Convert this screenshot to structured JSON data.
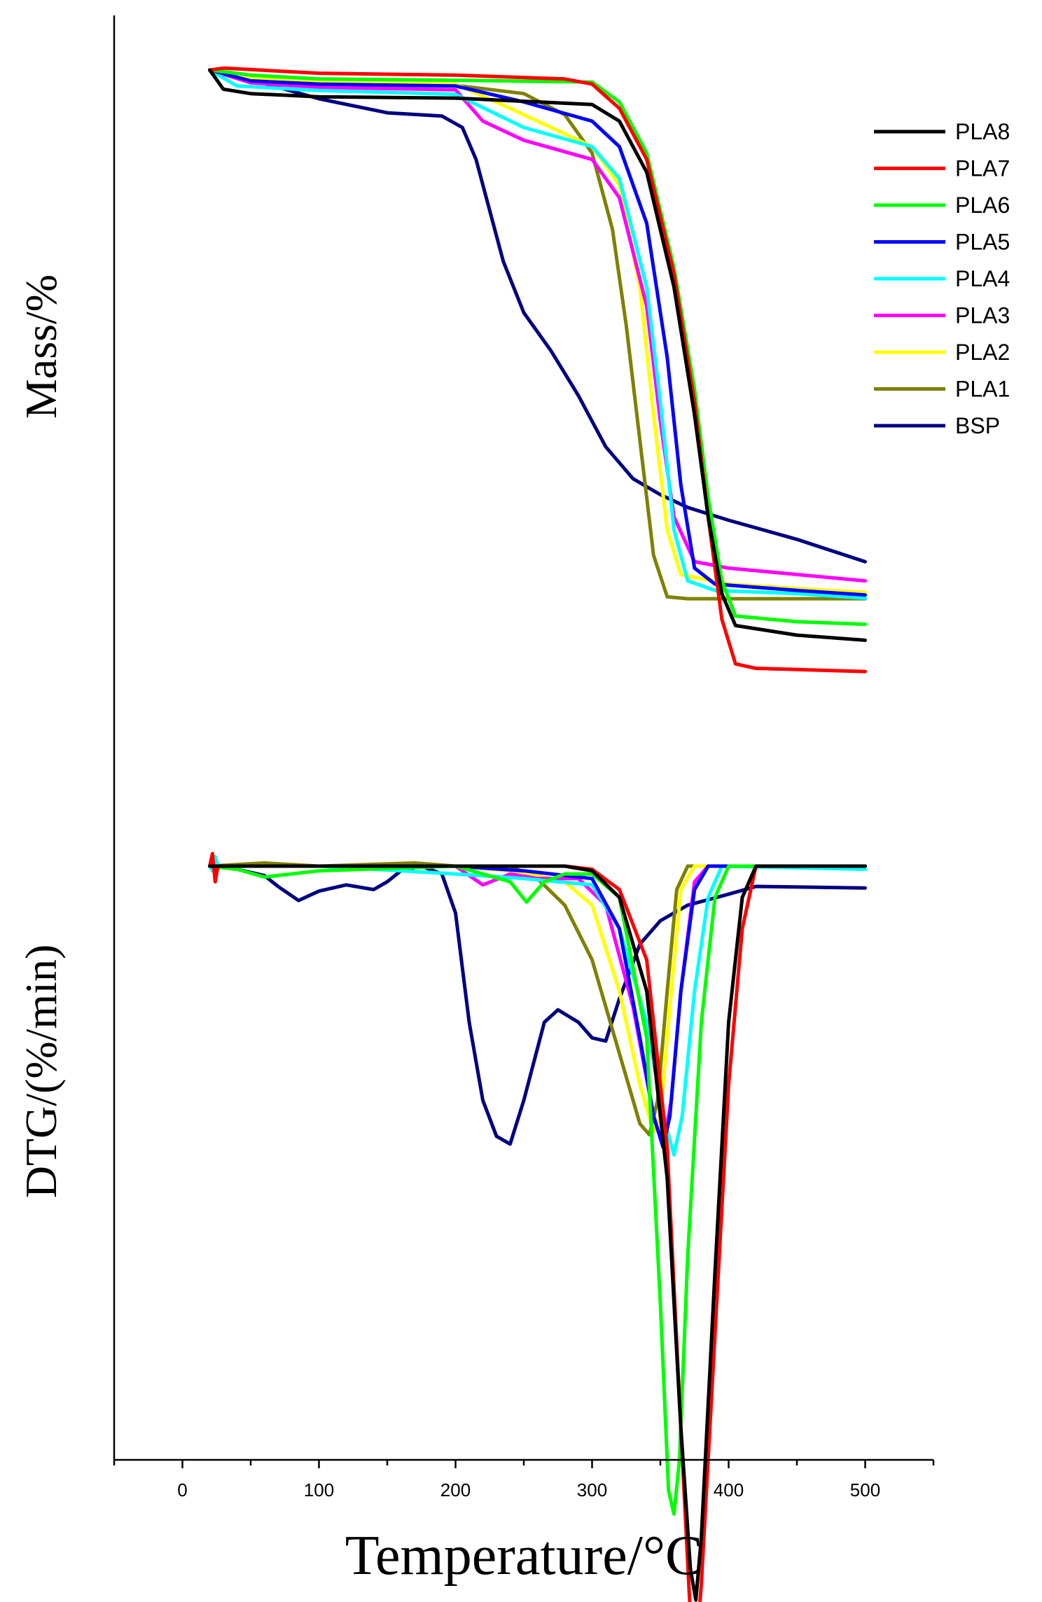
{
  "chart_data": {
    "type": "line",
    "xlabel": "Temperature/°C",
    "ylabel_top": "Mass/%",
    "ylabel_bottom": "DTG/(%/min)",
    "xlim": [
      -50,
      550
    ],
    "x_ticks": [
      0,
      100,
      200,
      300,
      400,
      500
    ],
    "y_ticks_shown": false,
    "grid": false,
    "legend_position": "top-right",
    "tga_series": [
      {
        "name": "PLA8",
        "color": "#000000",
        "points": [
          [
            20,
            100
          ],
          [
            30,
            97
          ],
          [
            50,
            96.3
          ],
          [
            100,
            95.8
          ],
          [
            200,
            95.6
          ],
          [
            300,
            94.6
          ],
          [
            320,
            92
          ],
          [
            340,
            84
          ],
          [
            360,
            66
          ],
          [
            375,
            46
          ],
          [
            385,
            30
          ],
          [
            395,
            18
          ],
          [
            405,
            13
          ],
          [
            450,
            11.5
          ],
          [
            500,
            10.7
          ]
        ]
      },
      {
        "name": "PLA7",
        "color": "#ff0000",
        "points": [
          [
            20,
            100
          ],
          [
            30,
            100.3
          ],
          [
            100,
            99.5
          ],
          [
            200,
            99.2
          ],
          [
            280,
            98.6
          ],
          [
            300,
            97.8
          ],
          [
            320,
            94
          ],
          [
            340,
            86
          ],
          [
            360,
            68
          ],
          [
            375,
            48
          ],
          [
            385,
            30
          ],
          [
            395,
            14
          ],
          [
            405,
            7
          ],
          [
            420,
            6.3
          ],
          [
            500,
            5.8
          ]
        ]
      },
      {
        "name": "PLA6",
        "color": "#00ff00",
        "points": [
          [
            20,
            100
          ],
          [
            50,
            99.2
          ],
          [
            100,
            98.6
          ],
          [
            200,
            98.4
          ],
          [
            300,
            98.1
          ],
          [
            320,
            95
          ],
          [
            340,
            87
          ],
          [
            360,
            69
          ],
          [
            375,
            50
          ],
          [
            385,
            33
          ],
          [
            395,
            20
          ],
          [
            405,
            14.5
          ],
          [
            450,
            13.6
          ],
          [
            500,
            13.2
          ]
        ]
      },
      {
        "name": "PLA5",
        "color": "#0000ff",
        "points": [
          [
            20,
            100
          ],
          [
            50,
            98.3
          ],
          [
            100,
            97.8
          ],
          [
            200,
            97.5
          ],
          [
            250,
            95
          ],
          [
            300,
            92
          ],
          [
            320,
            88
          ],
          [
            340,
            76
          ],
          [
            355,
            55
          ],
          [
            365,
            35
          ],
          [
            375,
            22
          ],
          [
            390,
            19.5
          ],
          [
            450,
            18.5
          ],
          [
            500,
            17.8
          ]
        ]
      },
      {
        "name": "PLA4",
        "color": "#00ffff",
        "points": [
          [
            20,
            100
          ],
          [
            40,
            97.5
          ],
          [
            100,
            96.8
          ],
          [
            200,
            96.2
          ],
          [
            250,
            91
          ],
          [
            300,
            88
          ],
          [
            320,
            83
          ],
          [
            340,
            66
          ],
          [
            350,
            48
          ],
          [
            360,
            28
          ],
          [
            370,
            20
          ],
          [
            390,
            18.5
          ],
          [
            450,
            18
          ],
          [
            500,
            17.3
          ]
        ]
      },
      {
        "name": "PLA3",
        "color": "#ff00ff",
        "points": [
          [
            20,
            100
          ],
          [
            50,
            98
          ],
          [
            100,
            97.3
          ],
          [
            200,
            96.9
          ],
          [
            220,
            92
          ],
          [
            250,
            89
          ],
          [
            300,
            86
          ],
          [
            320,
            80
          ],
          [
            340,
            63
          ],
          [
            350,
            45
          ],
          [
            360,
            30
          ],
          [
            375,
            23
          ],
          [
            400,
            22
          ],
          [
            450,
            21
          ],
          [
            500,
            20
          ]
        ]
      },
      {
        "name": "PLA2",
        "color": "#ffff00",
        "points": [
          [
            20,
            100
          ],
          [
            50,
            98.7
          ],
          [
            100,
            98.2
          ],
          [
            200,
            97.8
          ],
          [
            240,
            94
          ],
          [
            280,
            90
          ],
          [
            300,
            88
          ],
          [
            320,
            82
          ],
          [
            335,
            66
          ],
          [
            345,
            46
          ],
          [
            355,
            28
          ],
          [
            365,
            21
          ],
          [
            400,
            19.5
          ],
          [
            450,
            18.8
          ],
          [
            500,
            18.2
          ]
        ]
      },
      {
        "name": "PLA1",
        "color": "#808000",
        "points": [
          [
            20,
            100
          ],
          [
            50,
            99
          ],
          [
            100,
            98.3
          ],
          [
            150,
            97.8
          ],
          [
            200,
            97.6
          ],
          [
            250,
            96.3
          ],
          [
            280,
            93
          ],
          [
            300,
            87
          ],
          [
            315,
            75
          ],
          [
            325,
            60
          ],
          [
            335,
            42
          ],
          [
            345,
            24
          ],
          [
            355,
            17.5
          ],
          [
            370,
            17.2
          ],
          [
            500,
            17.2
          ]
        ]
      },
      {
        "name": "BSP",
        "color": "#000080",
        "points": [
          [
            20,
            100
          ],
          [
            50,
            98.5
          ],
          [
            100,
            95.5
          ],
          [
            150,
            93.3
          ],
          [
            190,
            92.8
          ],
          [
            205,
            91
          ],
          [
            215,
            86
          ],
          [
            225,
            78
          ],
          [
            235,
            70
          ],
          [
            250,
            62
          ],
          [
            270,
            56
          ],
          [
            290,
            49
          ],
          [
            310,
            41
          ],
          [
            330,
            36
          ],
          [
            350,
            33.5
          ],
          [
            370,
            31.5
          ],
          [
            400,
            29.5
          ],
          [
            450,
            26.5
          ],
          [
            500,
            23
          ]
        ]
      }
    ],
    "dtg_series": [
      {
        "name": "PLA8",
        "color": "#000000",
        "points": [
          [
            20,
            0
          ],
          [
            100,
            0
          ],
          [
            200,
            0
          ],
          [
            280,
            0
          ],
          [
            300,
            -0.3
          ],
          [
            320,
            -2
          ],
          [
            340,
            -8
          ],
          [
            355,
            -20
          ],
          [
            365,
            -36
          ],
          [
            372,
            -45
          ],
          [
            376,
            -47
          ],
          [
            380,
            -43
          ],
          [
            390,
            -26
          ],
          [
            400,
            -10
          ],
          [
            410,
            -2
          ],
          [
            420,
            0
          ],
          [
            500,
            0
          ]
        ]
      },
      {
        "name": "PLA7",
        "color": "#ff0000",
        "points": [
          [
            20,
            0
          ],
          [
            22,
            0.8
          ],
          [
            24,
            -1
          ],
          [
            26,
            0
          ],
          [
            100,
            0
          ],
          [
            200,
            0
          ],
          [
            280,
            0
          ],
          [
            300,
            -0.2
          ],
          [
            320,
            -1.5
          ],
          [
            340,
            -6
          ],
          [
            355,
            -18
          ],
          [
            365,
            -36
          ],
          [
            372,
            -48
          ],
          [
            376,
            -50.5
          ],
          [
            380,
            -46
          ],
          [
            390,
            -30
          ],
          [
            400,
            -14
          ],
          [
            410,
            -4
          ],
          [
            420,
            0
          ],
          [
            500,
            0
          ]
        ]
      },
      {
        "name": "PLA6",
        "color": "#00ff00",
        "points": [
          [
            20,
            0
          ],
          [
            40,
            -0.2
          ],
          [
            60,
            -0.7
          ],
          [
            100,
            -0.3
          ],
          [
            200,
            0
          ],
          [
            240,
            -1
          ],
          [
            252,
            -2.3
          ],
          [
            265,
            -1
          ],
          [
            280,
            -0.5
          ],
          [
            300,
            -0.5
          ],
          [
            320,
            -2
          ],
          [
            340,
            -11
          ],
          [
            350,
            -28
          ],
          [
            356,
            -40
          ],
          [
            360,
            -41.5
          ],
          [
            364,
            -38
          ],
          [
            370,
            -25
          ],
          [
            380,
            -10
          ],
          [
            390,
            -2
          ],
          [
            400,
            0
          ],
          [
            500,
            0
          ]
        ]
      },
      {
        "name": "PLA5",
        "color": "#0000ff",
        "points": [
          [
            20,
            0
          ],
          [
            100,
            0
          ],
          [
            200,
            0
          ],
          [
            250,
            -0.3
          ],
          [
            300,
            -0.8
          ],
          [
            320,
            -4
          ],
          [
            335,
            -11
          ],
          [
            345,
            -16
          ],
          [
            352,
            -18
          ],
          [
            357,
            -16
          ],
          [
            365,
            -8
          ],
          [
            375,
            -1.5
          ],
          [
            385,
            0
          ],
          [
            500,
            0
          ]
        ]
      },
      {
        "name": "PLA4",
        "color": "#00ffff",
        "points": [
          [
            20,
            0
          ],
          [
            22,
            -0.3
          ],
          [
            24,
            0.6
          ],
          [
            26,
            0
          ],
          [
            100,
            0
          ],
          [
            200,
            -0.5
          ],
          [
            250,
            -0.8
          ],
          [
            300,
            -1.2
          ],
          [
            320,
            -4
          ],
          [
            340,
            -10
          ],
          [
            352,
            -16
          ],
          [
            360,
            -18.5
          ],
          [
            366,
            -16
          ],
          [
            375,
            -8
          ],
          [
            385,
            -2
          ],
          [
            395,
            0
          ],
          [
            500,
            -0.2
          ]
        ]
      },
      {
        "name": "PLA3",
        "color": "#ff00ff",
        "points": [
          [
            20,
            0
          ],
          [
            100,
            0
          ],
          [
            200,
            0
          ],
          [
            220,
            -1.2
          ],
          [
            240,
            -0.5
          ],
          [
            260,
            -0.8
          ],
          [
            290,
            -0.8
          ],
          [
            310,
            -2.5
          ],
          [
            330,
            -9
          ],
          [
            345,
            -16
          ],
          [
            352,
            -18
          ],
          [
            358,
            -15
          ],
          [
            365,
            -8
          ],
          [
            375,
            -1
          ],
          [
            385,
            0
          ],
          [
            500,
            0
          ]
        ]
      },
      {
        "name": "PLA2",
        "color": "#ffff00",
        "points": [
          [
            20,
            0
          ],
          [
            100,
            0
          ],
          [
            200,
            0
          ],
          [
            250,
            -0.4
          ],
          [
            280,
            -1
          ],
          [
            300,
            -2.5
          ],
          [
            320,
            -8
          ],
          [
            335,
            -14
          ],
          [
            345,
            -17
          ],
          [
            350,
            -16
          ],
          [
            358,
            -8
          ],
          [
            365,
            -1.5
          ],
          [
            375,
            0
          ],
          [
            500,
            0
          ]
        ]
      },
      {
        "name": "PLA1",
        "color": "#808000",
        "points": [
          [
            20,
            0
          ],
          [
            60,
            0.2
          ],
          [
            100,
            0
          ],
          [
            170,
            0.2
          ],
          [
            200,
            0
          ],
          [
            240,
            0
          ],
          [
            260,
            -0.8
          ],
          [
            280,
            -2.5
          ],
          [
            300,
            -6
          ],
          [
            320,
            -12
          ],
          [
            335,
            -16.5
          ],
          [
            342,
            -17.2
          ],
          [
            348,
            -15
          ],
          [
            355,
            -8
          ],
          [
            362,
            -1.5
          ],
          [
            370,
            0
          ],
          [
            500,
            0
          ]
        ]
      },
      {
        "name": "BSP",
        "color": "#000080",
        "points": [
          [
            20,
            0
          ],
          [
            40,
            -0.2
          ],
          [
            60,
            -0.6
          ],
          [
            70,
            -1.3
          ],
          [
            85,
            -2.2
          ],
          [
            100,
            -1.6
          ],
          [
            120,
            -1.2
          ],
          [
            140,
            -1.5
          ],
          [
            150,
            -1
          ],
          [
            160,
            -0.3
          ],
          [
            175,
            0
          ],
          [
            190,
            -0.5
          ],
          [
            200,
            -3
          ],
          [
            210,
            -10
          ],
          [
            220,
            -15
          ],
          [
            230,
            -17.3
          ],
          [
            240,
            -17.8
          ],
          [
            250,
            -15
          ],
          [
            265,
            -10
          ],
          [
            275,
            -9.2
          ],
          [
            290,
            -10
          ],
          [
            300,
            -11
          ],
          [
            310,
            -11.2
          ],
          [
            320,
            -8.5
          ],
          [
            335,
            -5
          ],
          [
            350,
            -3.5
          ],
          [
            370,
            -2.5
          ],
          [
            400,
            -1.8
          ],
          [
            420,
            -1.3
          ],
          [
            500,
            -1.4
          ]
        ]
      }
    ]
  }
}
